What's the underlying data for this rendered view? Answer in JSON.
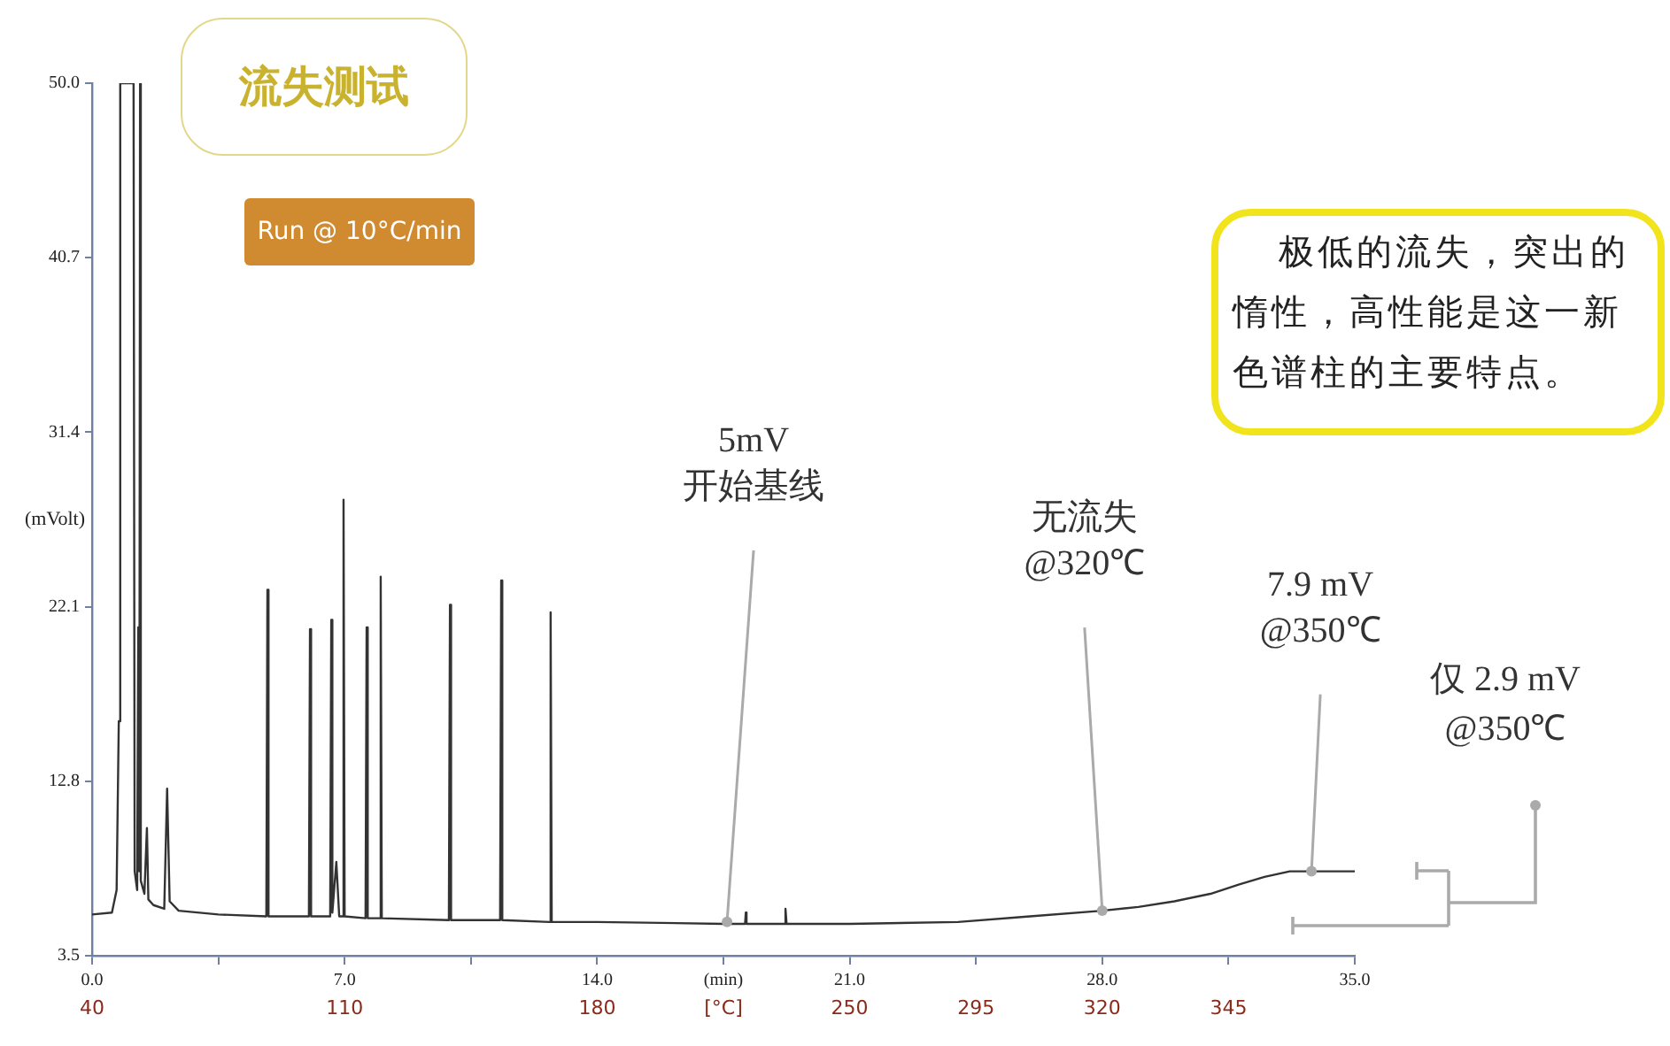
{
  "chart_data": {
    "type": "line",
    "title": "流失测试",
    "subtitle": "Run @ 10°C/min",
    "ylabel": "(mVolt)",
    "annotations": [
      "极低的流失，突出的惰性，高性能是这一新色谱柱的主要特点。",
      {
        "text": "5mV\n开始基线",
        "x": 17.6,
        "y": 5.3
      },
      {
        "text": "无流失\n@320℃",
        "x": 28,
        "y": 5.9
      },
      {
        "text": "7.9 mV\n@350℃",
        "x": 33.8,
        "y": 8.0
      },
      "仅 2.9 mV\n@350℃",
      "40",
      "110",
      "180",
      "[°C]",
      "250",
      "295",
      "320",
      "345"
    ],
    "x": [
      0,
      0.55,
      0.68,
      0.74,
      0.78,
      1.15,
      1.18,
      1.25,
      1.28,
      1.31,
      1.33,
      1.35,
      1.45,
      1.52,
      1.56,
      1.7,
      2.0,
      2.08,
      2.15,
      2.4,
      3.5,
      4.83,
      4.86,
      4.89,
      6.01,
      6.04,
      6.07,
      6.6,
      6.63,
      6.66,
      6.77,
      6.85,
      6.94,
      6.97,
      7.0,
      7.58,
      7.61,
      7.64,
      7.97,
      8.0,
      8.03,
      9.89,
      9.92,
      9.95,
      11.31,
      11.34,
      11.37,
      12.68,
      12.71,
      12.74,
      14,
      17.5,
      18.1,
      18.12,
      18.14,
      19.2,
      19.22,
      19.25,
      21,
      24,
      26,
      28,
      29,
      30,
      31,
      31.8,
      32.5,
      33.2,
      35
    ],
    "series": [
      {
        "color": "#333333",
        "values": [
          5.7,
          5.8,
          7,
          16,
          50,
          50,
          8,
          7,
          21,
          8,
          50,
          7.5,
          6.8,
          10.3,
          6.5,
          6.2,
          6.0,
          12.4,
          6.4,
          5.9,
          5.7,
          5.6,
          23.0,
          5.6,
          5.6,
          20.9,
          5.6,
          5.6,
          21.4,
          5.8,
          8.5,
          5.6,
          5.6,
          27.8,
          5.6,
          5.5,
          21.0,
          5.5,
          5.5,
          23.7,
          5.5,
          5.4,
          22.2,
          5.4,
          5.4,
          23.5,
          5.4,
          5.3,
          21.8,
          5.3,
          5.3,
          5.2,
          5.2,
          5.8,
          5.2,
          5.2,
          6.0,
          5.2,
          5.2,
          5.3,
          5.6,
          5.9,
          6.1,
          6.4,
          6.8,
          7.3,
          7.7,
          8.0,
          8.0
        ]
      }
    ],
    "xlim": [
      0,
      35
    ],
    "xticks": [
      {
        "value": 0,
        "label": "0.0"
      },
      {
        "value": 3.5,
        "label": null
      },
      {
        "value": 7,
        "label": "7.0"
      },
      {
        "value": 10.5,
        "label": null
      },
      {
        "value": 14,
        "label": "14.0"
      },
      {
        "value": 17.5,
        "label": "(min)"
      },
      {
        "value": 21,
        "label": "21.0"
      },
      {
        "value": 24.5,
        "label": null
      },
      {
        "value": 28,
        "label": "28.0"
      },
      {
        "value": 31.5,
        "label": null
      },
      {
        "value": 35,
        "label": "35.0"
      }
    ],
    "ylim": [
      3.5,
      50
    ],
    "yticks": [
      3.5,
      12.8,
      22.1,
      31.4,
      40.7,
      {
        "value": 50,
        "label": "50.0"
      }
    ],
    "marker": "none",
    "legend": false
  }
}
